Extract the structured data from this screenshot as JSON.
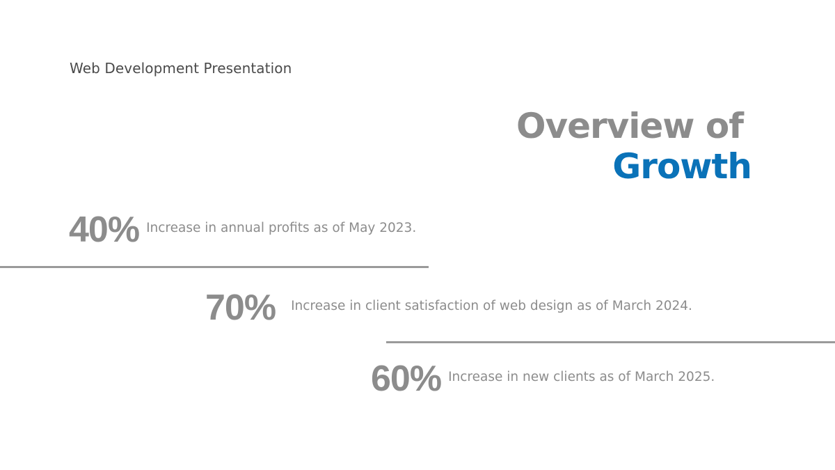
{
  "slide": {
    "subtitle": "Web Development Presentation",
    "title": {
      "line1": "Overview of",
      "line2": "Growth"
    },
    "colors": {
      "text_gray": "#8c8c8c",
      "subtitle_gray": "#4a4a4a",
      "accent_blue": "#0a72b8",
      "rule_gray": "#9a9a9a",
      "background": "#ffffff"
    },
    "stats": [
      {
        "value": "40%",
        "description": "Increase in annual profits as of May 2023."
      },
      {
        "value": "70%",
        "description": "Increase in client satisfaction of web design as of March 2024."
      },
      {
        "value": "60%",
        "description": "Increase in new clients as of March 2025."
      }
    ]
  }
}
